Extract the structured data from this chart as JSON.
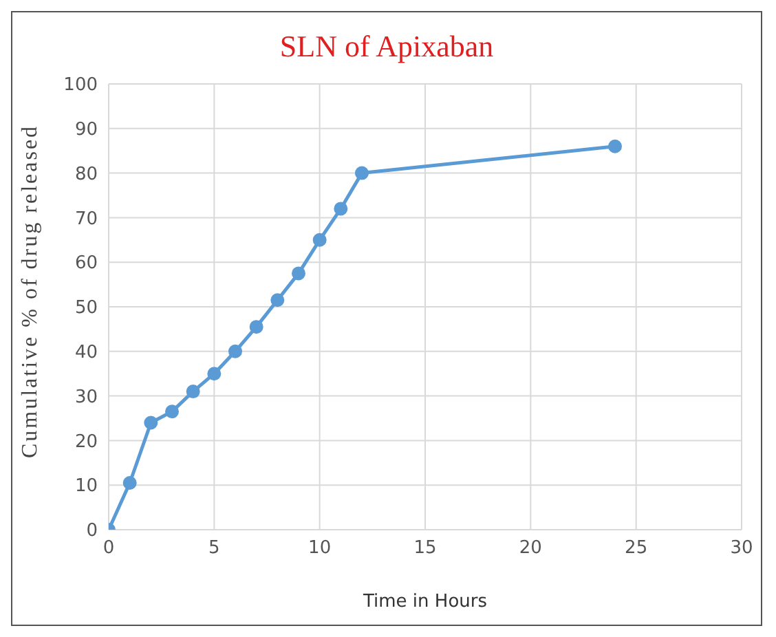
{
  "chart_data": {
    "type": "line",
    "title": "SLN of Apixaban",
    "xlabel": "Time in Hours",
    "ylabel": "Cumulative % of drug released",
    "x": [
      0,
      1,
      2,
      3,
      4,
      5,
      6,
      7,
      8,
      9,
      10,
      11,
      12,
      24
    ],
    "series": [
      {
        "color": "#5b9bd5",
        "values": [
          0,
          10.5,
          24,
          26.5,
          31,
          35,
          40,
          45.5,
          51.5,
          57.5,
          65,
          72,
          80,
          86
        ]
      }
    ],
    "xlim": [
      0,
      30
    ],
    "xticks": [
      0,
      5,
      10,
      15,
      20,
      25,
      30
    ],
    "ylim": [
      0,
      100
    ],
    "yticks": [
      0,
      10,
      20,
      30,
      40,
      50,
      60,
      70,
      80,
      90,
      100
    ],
    "grid": true,
    "marker": "circle",
    "line_style": "solid",
    "legend": false
  }
}
